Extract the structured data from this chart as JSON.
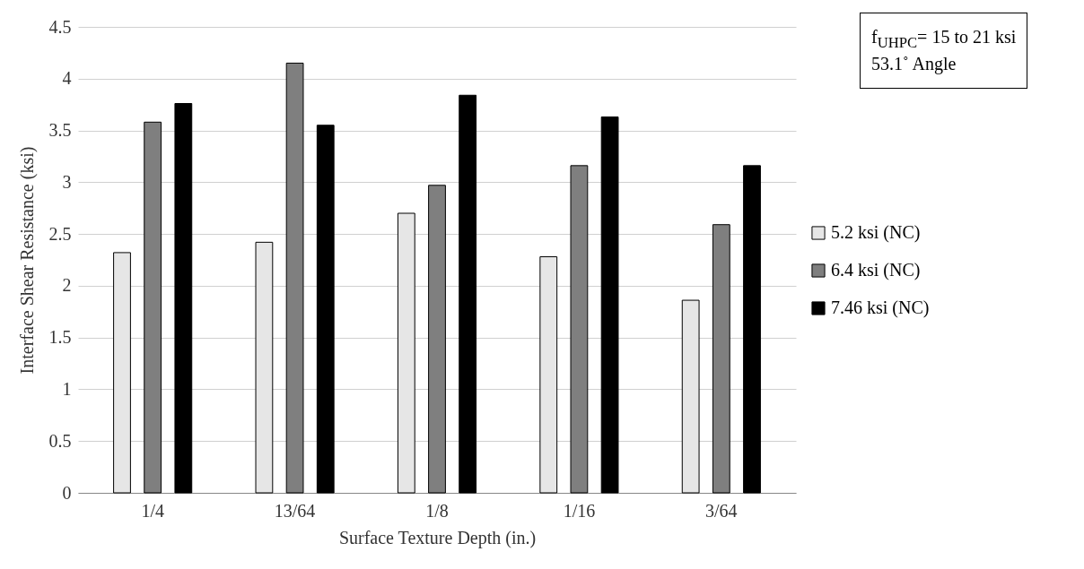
{
  "chart_data": {
    "type": "bar",
    "xlabel": "Surface Texture Depth (in.)",
    "ylabel": "Interface Shear Resistance (ksi)",
    "categories": [
      "1/4",
      "13/64",
      "1/8",
      "1/16",
      "3/64"
    ],
    "series": [
      {
        "name": "5.2 ksi (NC)",
        "color": "#e6e6e6",
        "values": [
          2.32,
          2.42,
          2.7,
          2.28,
          1.86
        ]
      },
      {
        "name": "6.4 ksi (NC)",
        "color": "#7f7f7f",
        "values": [
          3.58,
          4.15,
          2.97,
          3.16,
          2.59
        ]
      },
      {
        "name": "7.46 ksi (NC)",
        "color": "#000000",
        "values": [
          3.76,
          3.55,
          3.84,
          3.63,
          3.16
        ]
      }
    ],
    "ylim": [
      0,
      4.5
    ],
    "yticks": [
      0,
      0.5,
      1,
      1.5,
      2,
      2.5,
      3,
      3.5,
      4,
      4.5
    ],
    "grid": "y",
    "legend": "right",
    "annotations": [
      "f$_{UHPC}$= 15 to 21 ksi",
      "53.1˚ Angle"
    ]
  }
}
